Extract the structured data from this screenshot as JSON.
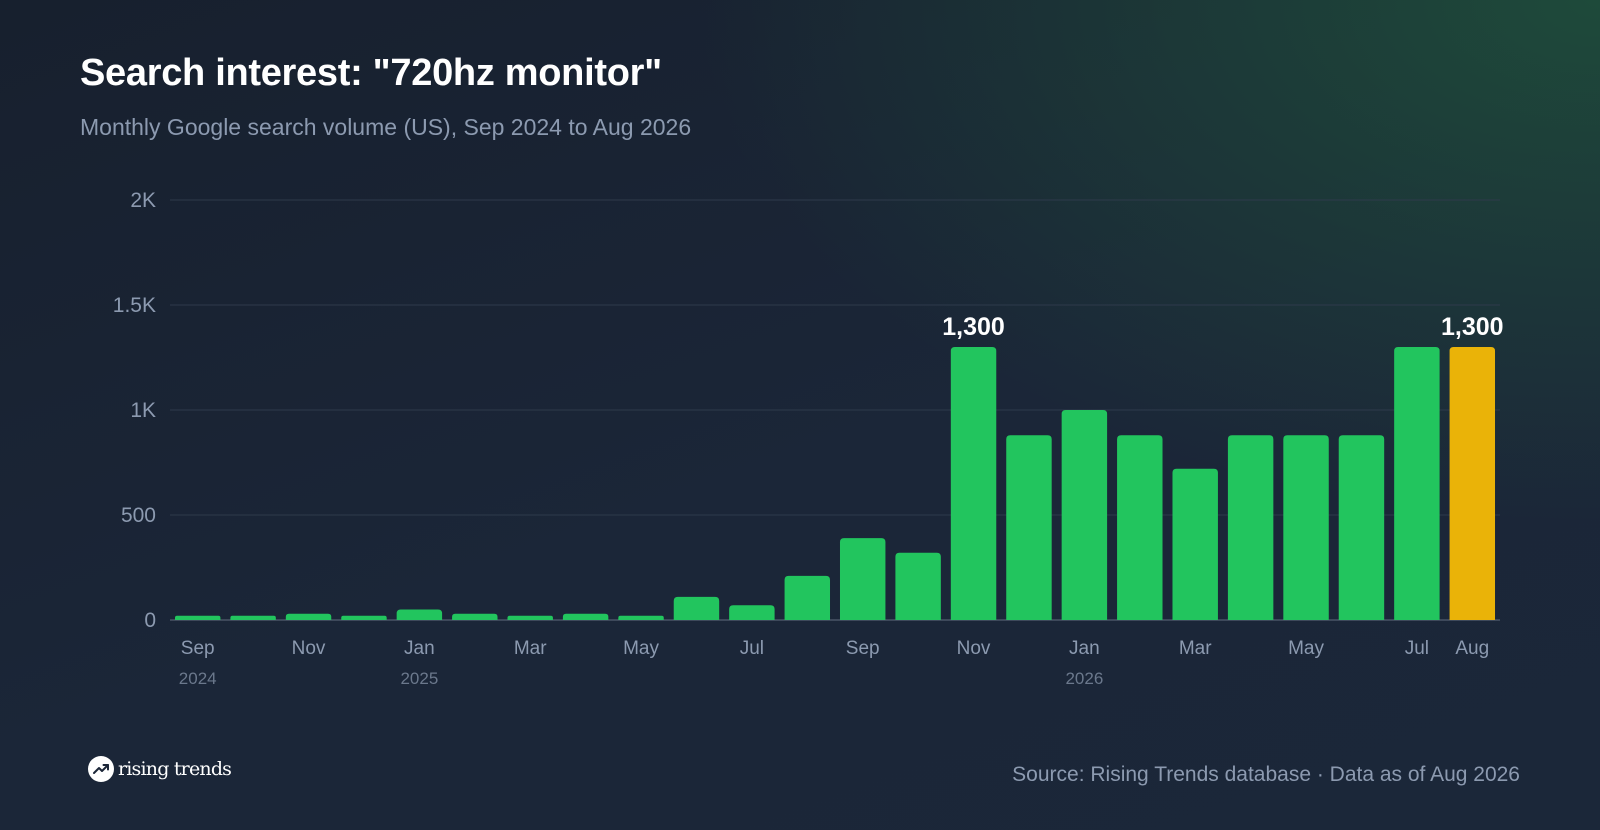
{
  "header": {
    "title": "Search interest: \"720hz monitor\"",
    "subtitle": "Monthly Google search volume (US), Sep 2024 to Aug 2026"
  },
  "chart_data": {
    "type": "bar",
    "title": "Search interest: \"720hz monitor\"",
    "subtitle": "Monthly Google search volume (US), Sep 2024 to Aug 2026",
    "xlabel": "",
    "ylabel": "",
    "ylim": [
      0,
      2000
    ],
    "yticks": [
      0,
      500,
      1000,
      1500,
      2000
    ],
    "ytick_labels": [
      "0",
      "500",
      "1K",
      "1.5K",
      "2K"
    ],
    "grid": true,
    "categories": [
      "Sep 2024",
      "Oct 2024",
      "Nov 2024",
      "Dec 2024",
      "Jan 2025",
      "Feb 2025",
      "Mar 2025",
      "Apr 2025",
      "May 2025",
      "Jun 2025",
      "Jul 2025",
      "Aug 2025",
      "Sep 2025",
      "Oct 2025",
      "Nov 2025",
      "Dec 2025",
      "Jan 2026",
      "Feb 2026",
      "Mar 2026",
      "Apr 2026",
      "May 2026",
      "Jun 2026",
      "Jul 2026",
      "Aug 2026"
    ],
    "values": [
      20,
      20,
      30,
      20,
      50,
      30,
      20,
      30,
      20,
      110,
      70,
      210,
      390,
      320,
      1300,
      880,
      1000,
      880,
      720,
      880,
      880,
      880,
      1300,
      1300
    ],
    "x_tick_labels": [
      {
        "index": 0,
        "label": "Sep"
      },
      {
        "index": 2,
        "label": "Nov"
      },
      {
        "index": 4,
        "label": "Jan"
      },
      {
        "index": 6,
        "label": "Mar"
      },
      {
        "index": 8,
        "label": "May"
      },
      {
        "index": 10,
        "label": "Jul"
      },
      {
        "index": 12,
        "label": "Sep"
      },
      {
        "index": 14,
        "label": "Nov"
      },
      {
        "index": 16,
        "label": "Jan"
      },
      {
        "index": 18,
        "label": "Mar"
      },
      {
        "index": 20,
        "label": "May"
      },
      {
        "index": 22,
        "label": "Jul"
      },
      {
        "index": 23,
        "label": "Aug"
      }
    ],
    "year_labels": [
      {
        "index": 0,
        "label": "2024"
      },
      {
        "index": 4,
        "label": "2025"
      },
      {
        "index": 16,
        "label": "2026"
      }
    ],
    "data_labels": [
      {
        "index": 14,
        "label": "1,300"
      },
      {
        "index": 23,
        "label": "1,300"
      }
    ],
    "highlight_index": 23,
    "colors": {
      "bar": "#22c55e",
      "highlight": "#eab308"
    }
  },
  "footer": {
    "logo_text": "rising trends",
    "logo_icon": "trending-up-icon",
    "source": "Source: Rising Trends database · Data as of Aug 2026"
  }
}
